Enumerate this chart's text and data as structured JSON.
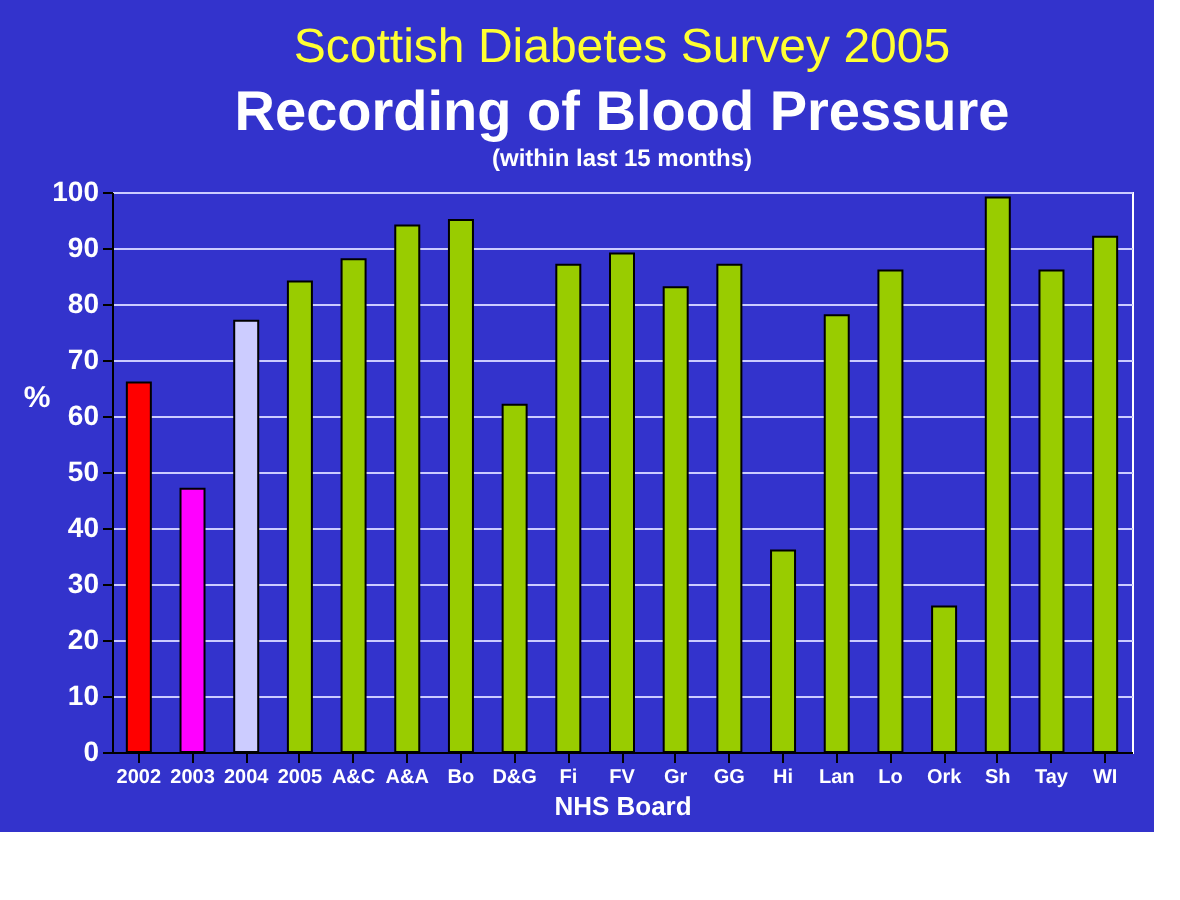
{
  "chart_data": {
    "type": "bar",
    "title": "Recording of Blood Pressure",
    "subtitle": "(within last 15 months)",
    "annotations": [
      "Scottish Diabetes Survey 2005"
    ],
    "xlabel": "NHS Board",
    "ylabel": "%",
    "categories": [
      "2002",
      "2003",
      "2004",
      "2005",
      "A&C",
      "A&A",
      "Bo",
      "D&G",
      "Fi",
      "FV",
      "Gr",
      "GG",
      "Hi",
      "Lan",
      "Lo",
      "Ork",
      "Sh",
      "Tay",
      "WI"
    ],
    "values": [
      66,
      47,
      77,
      84,
      88,
      94,
      95,
      62,
      87,
      89,
      83,
      87,
      36,
      78,
      86,
      26,
      99,
      86,
      92
    ],
    "colors": [
      "#ff0000",
      "#ff00ff",
      "#ccccff",
      "#99cc00",
      "#99cc00",
      "#99cc00",
      "#99cc00",
      "#99cc00",
      "#99cc00",
      "#99cc00",
      "#99cc00",
      "#99cc00",
      "#99cc00",
      "#99cc00",
      "#99cc00",
      "#99cc00",
      "#99cc00",
      "#99cc00",
      "#99cc00"
    ],
    "ylim": [
      0,
      100
    ],
    "yticks": [
      0,
      10,
      20,
      30,
      40,
      50,
      60,
      70,
      80,
      90,
      100
    ],
    "grid": "y"
  }
}
